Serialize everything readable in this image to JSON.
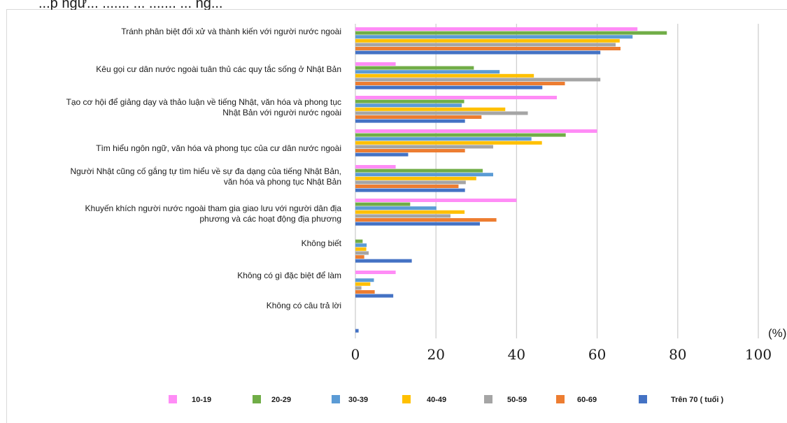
{
  "title_fragment": "...p ngư... ....... ... ....... ... ng...",
  "chart_data": {
    "type": "bar",
    "orientation": "horizontal",
    "categories": [
      [
        "Tránh phân biệt đối xử và thành kiến với người nước ngoài"
      ],
      [
        "Kêu gọi cư dân nước ngoài tuân thủ các quy tắc sống ở Nhật Bản"
      ],
      [
        "Tạo cơ hội để giảng dạy và thảo luận về tiếng Nhật, văn hóa và phong tục",
        "Nhật Bản với người nước ngoài"
      ],
      [
        "Tìm hiểu ngôn ngữ, văn hóa và phong tục của cư dân nước ngoài"
      ],
      [
        "Người Nhật cũng cố gắng tự tìm hiểu về sự đa dạng của tiếng Nhật Bản,",
        "văn hóa và phong tục Nhật Bản"
      ],
      [
        "Khuyến khích người nước ngoài tham gia giao lưu với người dân địa",
        "phương và các hoạt động địa phương"
      ],
      [
        "Không biết"
      ],
      [
        "Không có gì đặc biệt để làm"
      ],
      [
        "Không có câu trả lời"
      ]
    ],
    "series": [
      {
        "name": "10-19",
        "color": "#ff8cf6",
        "values": [
          70,
          10,
          50,
          60,
          10,
          40,
          0,
          10,
          0
        ]
      },
      {
        "name": "20-29",
        "color": "#70ad47",
        "values": [
          77.3,
          29.4,
          27,
          52.2,
          31.6,
          13.6,
          1.8,
          0,
          0
        ]
      },
      {
        "name": "30-39",
        "color": "#5b9bd5",
        "values": [
          68.8,
          35.8,
          26.4,
          43.7,
          34.2,
          20.1,
          2.8,
          4.6,
          0
        ]
      },
      {
        "name": "40-49",
        "color": "#ffc000",
        "values": [
          65.6,
          44.3,
          37.2,
          46.3,
          30,
          27.1,
          2.7,
          3.7,
          0
        ]
      },
      {
        "name": "50-59",
        "color": "#a5a5a5",
        "values": [
          64.6,
          60.8,
          42.8,
          34.2,
          27.4,
          23.6,
          3.3,
          1.5,
          0
        ]
      },
      {
        "name": "60-69",
        "color": "#ed7d31",
        "values": [
          65.8,
          52,
          31.3,
          27.2,
          25.6,
          35,
          2.2,
          4.8,
          0
        ]
      },
      {
        "name": "Trên 70 ( tuổi )",
        "color": "#4472c4",
        "values": [
          60.8,
          46.4,
          27.2,
          13.1,
          27.2,
          30.9,
          14,
          9.4,
          0.8
        ]
      }
    ],
    "xlim": [
      0,
      100
    ],
    "xticks": [
      "0",
      "20",
      "40",
      "60",
      "80",
      "100"
    ],
    "unit": "(%)",
    "legend_position": "bottom",
    "grid": true
  }
}
